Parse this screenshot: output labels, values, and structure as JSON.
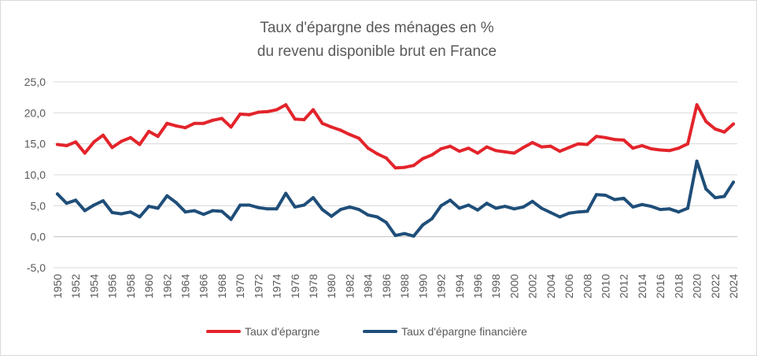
{
  "chart_data": {
    "type": "line",
    "title": "Taux d'épargne des ménages en %",
    "subtitle": "du revenu disponible brut en France",
    "ylim": [
      -5,
      25
    ],
    "y_ticks": [
      "-5,0",
      "0,0",
      "5,0",
      "10,0",
      "15,0",
      "20,0",
      "25,0"
    ],
    "y_tick_values": [
      -5,
      0,
      5,
      10,
      15,
      20,
      25
    ],
    "grid": true,
    "legend_position": "bottom",
    "x": [
      1950,
      1951,
      1952,
      1953,
      1954,
      1955,
      1956,
      1957,
      1958,
      1959,
      1960,
      1961,
      1962,
      1963,
      1964,
      1965,
      1966,
      1967,
      1968,
      1969,
      1970,
      1971,
      1972,
      1973,
      1974,
      1975,
      1976,
      1977,
      1978,
      1979,
      1980,
      1981,
      1982,
      1983,
      1984,
      1985,
      1986,
      1987,
      1988,
      1989,
      1990,
      1991,
      1992,
      1993,
      1994,
      1995,
      1996,
      1997,
      1998,
      1999,
      2000,
      2001,
      2002,
      2003,
      2004,
      2005,
      2006,
      2007,
      2008,
      2009,
      2010,
      2011,
      2012,
      2013,
      2014,
      2015,
      2016,
      2017,
      2018,
      2019,
      2020,
      2021,
      2022,
      2023,
      2024
    ],
    "x_tick_labels": [
      "1950",
      "1952",
      "1954",
      "1956",
      "1958",
      "1960",
      "1962",
      "1964",
      "1966",
      "1968",
      "1970",
      "1972",
      "1974",
      "1976",
      "1978",
      "1980",
      "1982",
      "1984",
      "1986",
      "1988",
      "1990",
      "1992",
      "1994",
      "1996",
      "1998",
      "2000",
      "2002",
      "2004",
      "2006",
      "2008",
      "2010",
      "2012",
      "2014",
      "2016",
      "2018",
      "2020",
      "2022",
      "2024"
    ],
    "series": [
      {
        "name": "Taux d'épargne",
        "color": "#e3242b",
        "values": [
          14.9,
          14.7,
          15.3,
          13.5,
          15.3,
          16.4,
          14.4,
          15.4,
          16.0,
          14.9,
          17.0,
          16.2,
          18.3,
          17.9,
          17.6,
          18.3,
          18.3,
          18.8,
          19.1,
          17.7,
          19.8,
          19.7,
          20.1,
          20.2,
          20.5,
          21.3,
          19.0,
          18.9,
          20.5,
          18.3,
          17.7,
          17.2,
          16.5,
          15.9,
          14.3,
          13.4,
          12.7,
          11.1,
          11.2,
          11.5,
          12.6,
          13.2,
          14.2,
          14.6,
          13.8,
          14.3,
          13.5,
          14.5,
          13.9,
          13.7,
          13.5,
          14.4,
          15.2,
          14.5,
          14.6,
          13.8,
          14.4,
          15.0,
          14.9,
          16.2,
          16.0,
          15.7,
          15.6,
          14.3,
          14.7,
          14.2,
          14.0,
          13.9,
          14.3,
          15.0,
          21.3,
          18.6,
          17.4,
          16.9,
          18.2
        ]
      },
      {
        "name": "Taux d'épargne financière",
        "color": "#1f4e79",
        "values": [
          6.9,
          5.4,
          5.9,
          4.2,
          5.1,
          5.8,
          3.9,
          3.7,
          4.0,
          3.2,
          4.9,
          4.6,
          6.6,
          5.5,
          4.0,
          4.2,
          3.6,
          4.2,
          4.1,
          2.8,
          5.1,
          5.1,
          4.7,
          4.5,
          4.5,
          7.0,
          4.8,
          5.1,
          6.3,
          4.4,
          3.3,
          4.4,
          4.8,
          4.4,
          3.5,
          3.2,
          2.3,
          0.2,
          0.5,
          0.1,
          1.9,
          2.9,
          5.0,
          5.9,
          4.6,
          5.1,
          4.3,
          5.4,
          4.6,
          4.9,
          4.5,
          4.8,
          5.7,
          4.6,
          3.9,
          3.2,
          3.8,
          4.0,
          4.1,
          6.8,
          6.7,
          6.0,
          6.2,
          4.8,
          5.2,
          4.9,
          4.4,
          4.5,
          4.0,
          4.6,
          12.2,
          7.7,
          6.3,
          6.5,
          8.8
        ]
      }
    ]
  }
}
